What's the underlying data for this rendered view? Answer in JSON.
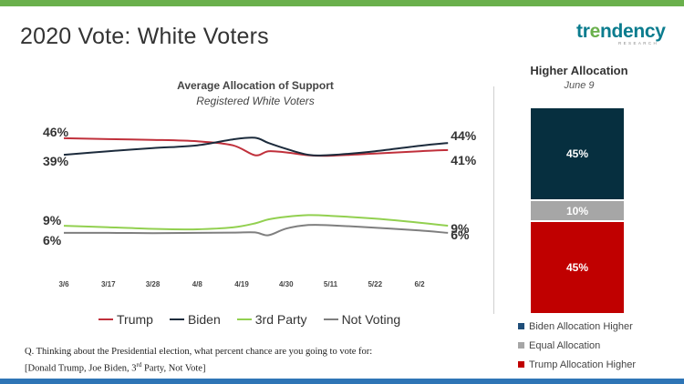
{
  "title": "2020 Vote: White Voters",
  "logo": {
    "word_start": "tr",
    "word_accent": "e",
    "word_end": "ndency",
    "sub": "RESEARCH"
  },
  "colors": {
    "trump": "#c0303b",
    "biden": "#1c2b3c",
    "third": "#92d050",
    "notvoting": "#7f7f7f",
    "bar_biden": "#062f3f",
    "bar_equal": "#a6a6a6",
    "bar_trump": "#c00000",
    "accent_green": "#6ab04c",
    "accent_blue": "#2e75b6"
  },
  "chart_data": [
    {
      "type": "line",
      "title": "Average Allocation of Support",
      "subtitle": "Registered White Voters",
      "x": [
        "3/6",
        "3/17",
        "3/28",
        "4/8",
        "4/19",
        "4/30",
        "5/11",
        "5/22",
        "6/2"
      ],
      "x_end": "6/9",
      "ylim": [
        0,
        50
      ],
      "grid": false,
      "legend_position": "bottom",
      "series": [
        {
          "name": "Trump",
          "color_key": "trump",
          "points": [
            [
              0,
              46
            ],
            [
              1,
              45.6
            ],
            [
              2,
              45.3
            ],
            [
              3,
              44.7
            ],
            [
              3.8,
              43
            ],
            [
              4.3,
              38.8
            ],
            [
              4.6,
              40.5
            ],
            [
              5,
              40
            ],
            [
              5.5,
              38.8
            ],
            [
              6,
              38.6
            ],
            [
              7,
              39.5
            ],
            [
              8,
              40.5
            ],
            [
              8.64,
              41
            ]
          ]
        },
        {
          "name": "Biden",
          "color_key": "biden",
          "points": [
            [
              0,
              39
            ],
            [
              1,
              40.5
            ],
            [
              2,
              41.8
            ],
            [
              3,
              43
            ],
            [
              3.8,
              45.5
            ],
            [
              4.3,
              46.2
            ],
            [
              4.6,
              44
            ],
            [
              5,
              41.5
            ],
            [
              5.5,
              39
            ],
            [
              6,
              38.9
            ],
            [
              7,
              40.5
            ],
            [
              8,
              42.8
            ],
            [
              8.64,
              44
            ]
          ]
        },
        {
          "name": "3rd Party",
          "color_key": "third",
          "points": [
            [
              0,
              9
            ],
            [
              1,
              8.4
            ],
            [
              2,
              7.7
            ],
            [
              3,
              7.5
            ],
            [
              3.8,
              8.3
            ],
            [
              4.3,
              10
            ],
            [
              4.6,
              11.7
            ],
            [
              5,
              12.8
            ],
            [
              5.5,
              13.5
            ],
            [
              6,
              13.2
            ],
            [
              7,
              12
            ],
            [
              8,
              10.3
            ],
            [
              8.64,
              9
            ]
          ]
        },
        {
          "name": "Not Voting",
          "color_key": "notvoting",
          "points": [
            [
              0,
              6
            ],
            [
              1,
              6
            ],
            [
              2,
              5.9
            ],
            [
              3,
              6
            ],
            [
              3.8,
              6.1
            ],
            [
              4.3,
              6.2
            ],
            [
              4.6,
              5
            ],
            [
              5,
              7.8
            ],
            [
              5.5,
              9.3
            ],
            [
              6,
              9.2
            ],
            [
              7,
              8.2
            ],
            [
              8,
              7
            ],
            [
              8.64,
              6
            ]
          ]
        }
      ],
      "data_labels": [
        {
          "text": "46%",
          "series": "Trump",
          "side": "start"
        },
        {
          "text": "39%",
          "series": "Biden",
          "side": "start"
        },
        {
          "text": "44%",
          "series": "Biden",
          "side": "end"
        },
        {
          "text": "41%",
          "series": "Trump",
          "side": "end"
        },
        {
          "text": "9%",
          "series": "3rd Party",
          "side": "start"
        },
        {
          "text": "6%",
          "series": "Not Voting",
          "side": "start"
        },
        {
          "text": "9%",
          "series": "3rd Party",
          "side": "end"
        },
        {
          "text": "6%",
          "series": "Not Voting",
          "side": "end"
        }
      ]
    },
    {
      "type": "bar",
      "stacked": true,
      "title": "Higher Allocation",
      "subtitle": "June 9",
      "ylim": [
        0,
        100
      ],
      "legend_position": "bottom",
      "segments": [
        {
          "name": "Biden Allocation Higher",
          "value": 45,
          "label": "45%",
          "color_key": "bar_biden"
        },
        {
          "name": "Equal Allocation",
          "value": 10,
          "label": "10%",
          "color_key": "bar_equal"
        },
        {
          "name": "Trump Allocation Higher",
          "value": 45,
          "label": "45%",
          "color_key": "bar_trump"
        }
      ]
    }
  ],
  "question": {
    "line1": "Q. Thinking about the Presidential election, what percent chance are you going to vote for:",
    "line2_pre": "[Donald Trump, Joe Biden, 3",
    "line2_sup": "rd",
    "line2_post": " Party, Not Vote]"
  }
}
